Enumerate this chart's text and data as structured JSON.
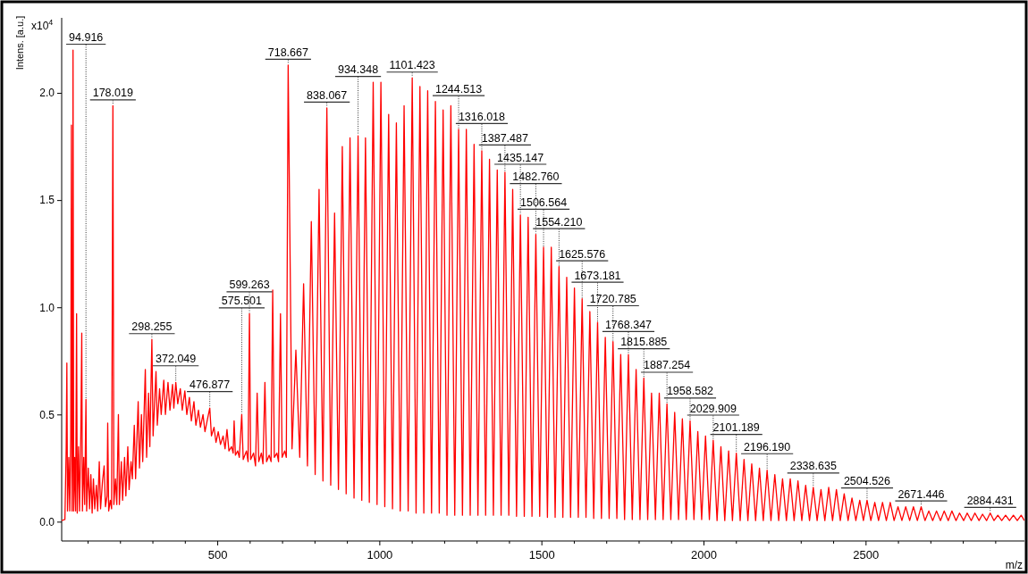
{
  "chart_data": {
    "type": "line",
    "xlabel": "m/z",
    "ylabel": "Intens. [a.u.]",
    "xlim": [
      20,
      2990
    ],
    "ylim": [
      -0.09,
      2.35
    ],
    "xticks": [
      {
        "value": 100,
        "label": null
      },
      {
        "value": 200,
        "label": null
      },
      {
        "value": 300,
        "label": null
      },
      {
        "value": 400,
        "label": null
      },
      500,
      {
        "value": 600,
        "label": null
      },
      {
        "value": 700,
        "label": null
      },
      {
        "value": 800,
        "label": null
      },
      {
        "value": 900,
        "label": null
      },
      1000,
      {
        "value": 1100,
        "label": null
      },
      {
        "value": 1200,
        "label": null
      },
      {
        "value": 1300,
        "label": null
      },
      {
        "value": 1400,
        "label": null
      },
      1500,
      {
        "value": 1600,
        "label": null
      },
      {
        "value": 1700,
        "label": null
      },
      {
        "value": 1800,
        "label": null
      },
      {
        "value": 1900,
        "label": null
      },
      2000,
      {
        "value": 2100,
        "label": null
      },
      {
        "value": 2200,
        "label": null
      },
      {
        "value": 2300,
        "label": null
      },
      {
        "value": 2400,
        "label": null
      },
      2500,
      {
        "value": 2600,
        "label": null
      },
      {
        "value": 2700,
        "label": null
      },
      {
        "value": 2800,
        "label": null
      },
      {
        "value": 2900,
        "label": null
      }
    ],
    "yticks": [
      {
        "value": 0,
        "label": "0.0"
      },
      0.5,
      {
        "value": 1,
        "label": "1.0"
      },
      1.5,
      {
        "value": 2,
        "label": "2.0"
      }
    ],
    "series": [
      {
        "color": "#ff0000",
        "x": [
          20,
          30,
          34,
          36,
          38,
          42,
          45,
          48,
          50,
          52,
          54,
          55,
          57,
          60,
          63,
          66,
          68,
          72,
          75,
          79,
          82,
          84,
          88,
          91,
          94.916,
          97,
          102,
          106,
          110,
          114,
          118,
          122,
          127,
          131,
          136,
          140,
          146,
          151,
          155,
          160,
          162,
          165,
          170,
          174,
          178.019,
          181,
          186,
          190,
          195,
          198,
          204,
          208,
          214,
          218,
          224,
          228,
          234,
          238,
          244,
          248,
          256,
          260,
          266,
          270,
          278,
          282,
          288,
          292,
          298.255,
          302,
          311,
          315,
          322,
          327,
          335,
          340,
          348,
          354,
          362,
          366,
          372.049,
          378,
          386,
          392,
          400,
          406,
          414,
          420,
          428,
          434,
          442,
          448,
          456,
          462,
          470,
          476.877,
          482,
          490,
          496,
          503,
          510,
          518,
          524,
          530,
          536,
          544,
          549,
          552,
          556,
          563,
          568,
          575.501,
          580,
          590,
          595,
          599.263,
          603,
          612,
          618,
          623,
          628,
          636,
          641,
          647,
          652,
          660,
          666,
          671,
          676,
          684,
          689,
          695,
          700,
          708,
          713,
          718.667,
          730.6,
          742.5,
          754.4,
          766.3,
          778.2,
          790.1,
          802.0,
          814.0,
          826.0,
          838.067,
          850.0,
          861.9,
          873.8,
          885.7,
          897.6,
          909.5,
          921.9,
          934.348,
          945.8,
          957.2,
          969.1,
          981.0,
          992.9,
          1004.8,
          1016.8,
          1028.7,
          1040.6,
          1052.5,
          1064.4,
          1076.3,
          1088.9,
          1101.423,
          1113.3,
          1125.2,
          1137.2,
          1149.1,
          1161.0,
          1172.9,
          1184.8,
          1196.7,
          1208.7,
          1220.6,
          1232.6,
          1244.513,
          1256.4,
          1268.3,
          1280.3,
          1292.2,
          1304.1,
          1316.018,
          1327.9,
          1339.8,
          1351.8,
          1363.7,
          1375.6,
          1387.487,
          1399.4,
          1411.3,
          1423.2,
          1435.147,
          1447.1,
          1459.0,
          1470.9,
          1482.76,
          1494.7,
          1506.564,
          1518.5,
          1530.4,
          1542.3,
          1554.21,
          1566.1,
          1578.0,
          1589.9,
          1601.8,
          1613.7,
          1625.576,
          1637.5,
          1649.4,
          1661.3,
          1673.181,
          1685.1,
          1697.0,
          1708.9,
          1720.785,
          1732.7,
          1744.6,
          1756.5,
          1768.347,
          1780.2,
          1792.1,
          1804.0,
          1815.885,
          1827.8,
          1839.7,
          1851.6,
          1863.5,
          1875.4,
          1887.254,
          1899.2,
          1911.1,
          1923.0,
          1934.8,
          1946.7,
          1958.582,
          1970.5,
          1982.4,
          1994.3,
          2006.2,
          2018.1,
          2029.909,
          2041.8,
          2053.7,
          2065.6,
          2077.5,
          2089.3,
          2101.189,
          2113.1,
          2125.0,
          2136.9,
          2148.8,
          2160.7,
          2172.6,
          2184.4,
          2196.19,
          2208.1,
          2220.0,
          2231.9,
          2243.8,
          2255.7,
          2267.6,
          2279.5,
          2291.4,
          2303.3,
          2315.2,
          2327.0,
          2338.635,
          2350.5,
          2362.4,
          2374.3,
          2386.2,
          2398.1,
          2410.0,
          2422.0,
          2434.0,
          2446.0,
          2458.0,
          2470.0,
          2482.0,
          2493.3,
          2504.526,
          2516.3,
          2528.4,
          2540.0,
          2552.3,
          2564.0,
          2576.1,
          2588.0,
          2600.0,
          2612.0,
          2623.8,
          2636.0,
          2647.6,
          2659.7,
          2671.446,
          2683.2,
          2695.1,
          2707.0,
          2718.8,
          2731.0,
          2742.5,
          2755.0,
          2766.2,
          2779.0,
          2789.8,
          2802.5,
          2813.5,
          2826.0,
          2837.2,
          2850.0,
          2860.8,
          2873.2,
          2884.431,
          2896.2,
          2908.0,
          2920.0,
          2932.0,
          2944.0,
          2956.0,
          2968.0,
          2980.0,
          2990.0
        ],
        "values": [
          0.005,
          0.01,
          0.35,
          0.74,
          0.05,
          0.3,
          0.05,
          0.4,
          1.85,
          0.05,
          0.4,
          2.2,
          0.05,
          0.3,
          0.05,
          0.97,
          0.04,
          0.35,
          0.05,
          0.4,
          0.88,
          0.05,
          0.3,
          0.08,
          0.57,
          0.05,
          0.25,
          0.06,
          0.22,
          0.04,
          0.2,
          0.06,
          0.17,
          0.05,
          0.28,
          0.06,
          0.19,
          0.26,
          0.07,
          0.12,
          0.46,
          0.05,
          0.1,
          0.06,
          1.94,
          0.08,
          0.2,
          0.08,
          0.5,
          0.08,
          0.28,
          0.1,
          0.3,
          0.12,
          0.35,
          0.15,
          0.28,
          0.2,
          0.45,
          0.2,
          0.56,
          0.25,
          0.5,
          0.28,
          0.71,
          0.3,
          0.6,
          0.35,
          0.85,
          0.4,
          0.7,
          0.45,
          0.62,
          0.5,
          0.66,
          0.5,
          0.65,
          0.52,
          0.64,
          0.53,
          0.65,
          0.55,
          0.62,
          0.52,
          0.61,
          0.5,
          0.58,
          0.47,
          0.56,
          0.45,
          0.52,
          0.44,
          0.5,
          0.42,
          0.48,
          0.53,
          0.4,
          0.44,
          0.37,
          0.42,
          0.36,
          0.4,
          0.34,
          0.43,
          0.33,
          0.35,
          0.32,
          0.47,
          0.31,
          0.33,
          0.3,
          0.5,
          0.29,
          0.33,
          0.28,
          0.97,
          0.29,
          0.32,
          0.26,
          0.6,
          0.28,
          0.32,
          0.27,
          0.65,
          0.28,
          0.31,
          0.28,
          1.08,
          0.3,
          0.32,
          0.28,
          0.97,
          0.3,
          0.33,
          0.3,
          2.13,
          0.34,
          0.8,
          0.3,
          1.11,
          0.26,
          1.4,
          0.22,
          1.55,
          0.19,
          1.93,
          0.17,
          1.44,
          0.15,
          1.75,
          0.13,
          1.79,
          0.11,
          1.8,
          0.1,
          1.79,
          0.09,
          2.05,
          0.08,
          2.05,
          0.07,
          1.9,
          0.06,
          1.86,
          0.05,
          1.94,
          0.05,
          2.07,
          0.04,
          2.03,
          0.04,
          2.01,
          0.04,
          1.96,
          0.04,
          1.92,
          0.03,
          1.94,
          0.03,
          1.83,
          0.03,
          1.83,
          0.03,
          1.76,
          0.03,
          1.73,
          0.03,
          1.69,
          0.03,
          1.64,
          0.03,
          1.63,
          0.03,
          1.55,
          0.025,
          1.43,
          0.025,
          1.42,
          0.025,
          1.34,
          0.025,
          1.28,
          0.02,
          1.28,
          0.02,
          1.19,
          0.02,
          1.14,
          0.02,
          1.09,
          0.02,
          1.04,
          0.02,
          0.98,
          0.015,
          0.93,
          0.015,
          0.86,
          0.015,
          0.84,
          0.015,
          0.78,
          0.01,
          0.78,
          0.01,
          0.71,
          0.01,
          0.67,
          0.01,
          0.6,
          0.01,
          0.6,
          0.01,
          0.55,
          0.01,
          0.51,
          0.01,
          0.48,
          0.01,
          0.47,
          0.01,
          0.42,
          0.01,
          0.4,
          0.01,
          0.38,
          0.005,
          0.35,
          0.005,
          0.33,
          0.005,
          0.32,
          0.005,
          0.29,
          0.005,
          0.27,
          0.005,
          0.25,
          0.005,
          0.24,
          0.005,
          0.22,
          0.005,
          0.2,
          0.005,
          0.2,
          0.005,
          0.19,
          0.005,
          0.17,
          0.005,
          0.16,
          0.005,
          0.15,
          0.005,
          0.16,
          0.005,
          0.15,
          0.005,
          0.13,
          0.005,
          0.11,
          0.005,
          0.1,
          0.005,
          0.1,
          0.005,
          0.09,
          0.005,
          0.09,
          0.005,
          0.09,
          0.005,
          0.07,
          0.005,
          0.07,
          0.005,
          0.07,
          0.005,
          0.07,
          0.005,
          0.05,
          0.005,
          0.05,
          0.005,
          0.05,
          0.005,
          0.05,
          0.005,
          0.04,
          0.005,
          0.04,
          0.005,
          0.04,
          0.005,
          0.035,
          0.005,
          0.04,
          0.005,
          0.03,
          0.005,
          0.03,
          0.005,
          0.03,
          0.005,
          0.03,
          0.005
        ]
      }
    ],
    "annotations": [
      "x10$^{4}$",
      {
        "text": "94.916",
        "x": 94.916,
        "y": 0.57
      },
      {
        "text": "178.019",
        "x": 178.019,
        "y": 1.94
      },
      {
        "text": "298.255",
        "x": 298.255,
        "y": 0.85
      },
      {
        "text": "372.049",
        "x": 372.049,
        "y": 0.65
      },
      {
        "text": "476.877",
        "x": 476.877,
        "y": 0.53
      },
      {
        "text": "575.501",
        "x": 575.501,
        "y": 0.5
      },
      {
        "text": "599.263",
        "x": 599.263,
        "y": 0.97
      },
      {
        "text": "718.667",
        "x": 718.667,
        "y": 2.13
      },
      {
        "text": "838.067",
        "x": 838.067,
        "y": 1.93
      },
      {
        "text": "934.348",
        "x": 934.348,
        "y": 1.8
      },
      {
        "text": "1101.423",
        "x": 1101.423,
        "y": 2.07
      },
      {
        "text": "1244.513",
        "x": 1244.513,
        "y": 1.83
      },
      {
        "text": "1316.018",
        "x": 1316.018,
        "y": 1.73
      },
      {
        "text": "1387.487",
        "x": 1387.487,
        "y": 1.63
      },
      {
        "text": "1435.147",
        "x": 1435.147,
        "y": 1.43
      },
      {
        "text": "1482.760",
        "x": 1482.76,
        "y": 1.34
      },
      {
        "text": "1506.564",
        "x": 1506.564,
        "y": 1.28
      },
      {
        "text": "1554.210",
        "x": 1554.21,
        "y": 1.19
      },
      {
        "text": "1625.576",
        "x": 1625.576,
        "y": 1.04
      },
      {
        "text": "1673.181",
        "x": 1673.181,
        "y": 0.93
      },
      {
        "text": "1720.785",
        "x": 1720.785,
        "y": 0.84
      },
      {
        "text": "1768.347",
        "x": 1768.347,
        "y": 0.78
      },
      {
        "text": "1815.885",
        "x": 1815.885,
        "y": 0.67
      },
      {
        "text": "1887.254",
        "x": 1887.254,
        "y": 0.55
      },
      {
        "text": "1958.582",
        "x": 1958.582,
        "y": 0.47
      },
      {
        "text": "2029.909",
        "x": 2029.909,
        "y": 0.38
      },
      {
        "text": "2101.189",
        "x": 2101.189,
        "y": 0.32
      },
      {
        "text": "2196.190",
        "x": 2196.19,
        "y": 0.24
      },
      {
        "text": "2338.635",
        "x": 2338.635,
        "y": 0.16
      },
      {
        "text": "2504.526",
        "x": 2504.526,
        "y": 0.1
      },
      {
        "text": "2671.446",
        "x": 2671.446,
        "y": 0.07
      },
      {
        "text": "2884.431",
        "x": 2884.431,
        "y": 0.04
      }
    ]
  }
}
